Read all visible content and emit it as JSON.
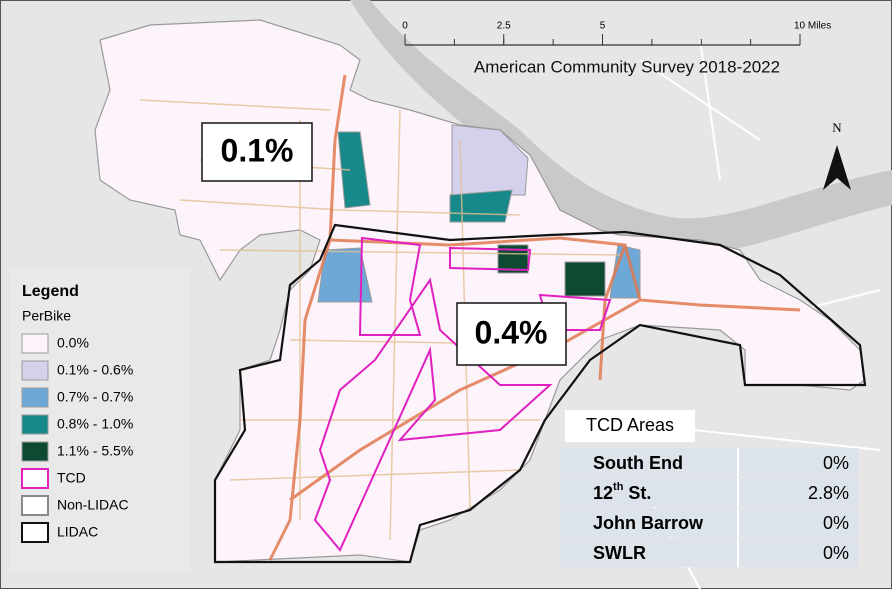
{
  "scale_bar": {
    "ticks": [
      {
        "value": 0,
        "label": "0"
      },
      {
        "value": 2.5,
        "label": "2.5"
      },
      {
        "value": 5,
        "label": "5"
      },
      {
        "value": 10,
        "label": "10 Miles"
      }
    ]
  },
  "title": "American Community Survey 2018-2022",
  "north": "N",
  "callouts": [
    "0.1%",
    "0.4%"
  ],
  "legend": {
    "title": "Legend",
    "field": "PerBike",
    "items": [
      {
        "label": "0.0%",
        "fill": "#fdf3fa",
        "stroke": "#9a9a9a"
      },
      {
        "label": "0.1% - 0.6%",
        "fill": "#d3d1ec",
        "stroke": "#9a9a9a"
      },
      {
        "label": "0.7% - 0.7%",
        "fill": "#6ea8d6",
        "stroke": "#9a9a9a"
      },
      {
        "label": "0.8% - 1.0%",
        "fill": "#17898a",
        "stroke": "#9a9a9a"
      },
      {
        "label": "1.1% - 5.5%",
        "fill": "#0c4a32",
        "stroke": "#9a9a9a"
      },
      {
        "label": "TCD",
        "fill": "#ffffff",
        "stroke": "#e020c0"
      },
      {
        "label": "Non-LIDAC",
        "fill": "#ffffff",
        "stroke": "#8a8a8a"
      },
      {
        "label": "LIDAC",
        "fill": "#ffffff",
        "stroke": "#111111"
      }
    ]
  },
  "tcd_table": {
    "title": "TCD Areas",
    "rows": [
      {
        "name": [
          "South End"
        ],
        "value": "0%"
      },
      {
        "name": [
          "12",
          "th",
          " St."
        ],
        "value": "2.8%"
      },
      {
        "name": [
          "John Barrow"
        ],
        "value": "0%"
      },
      {
        "name": [
          "SWLR"
        ],
        "value": "0%"
      }
    ]
  }
}
